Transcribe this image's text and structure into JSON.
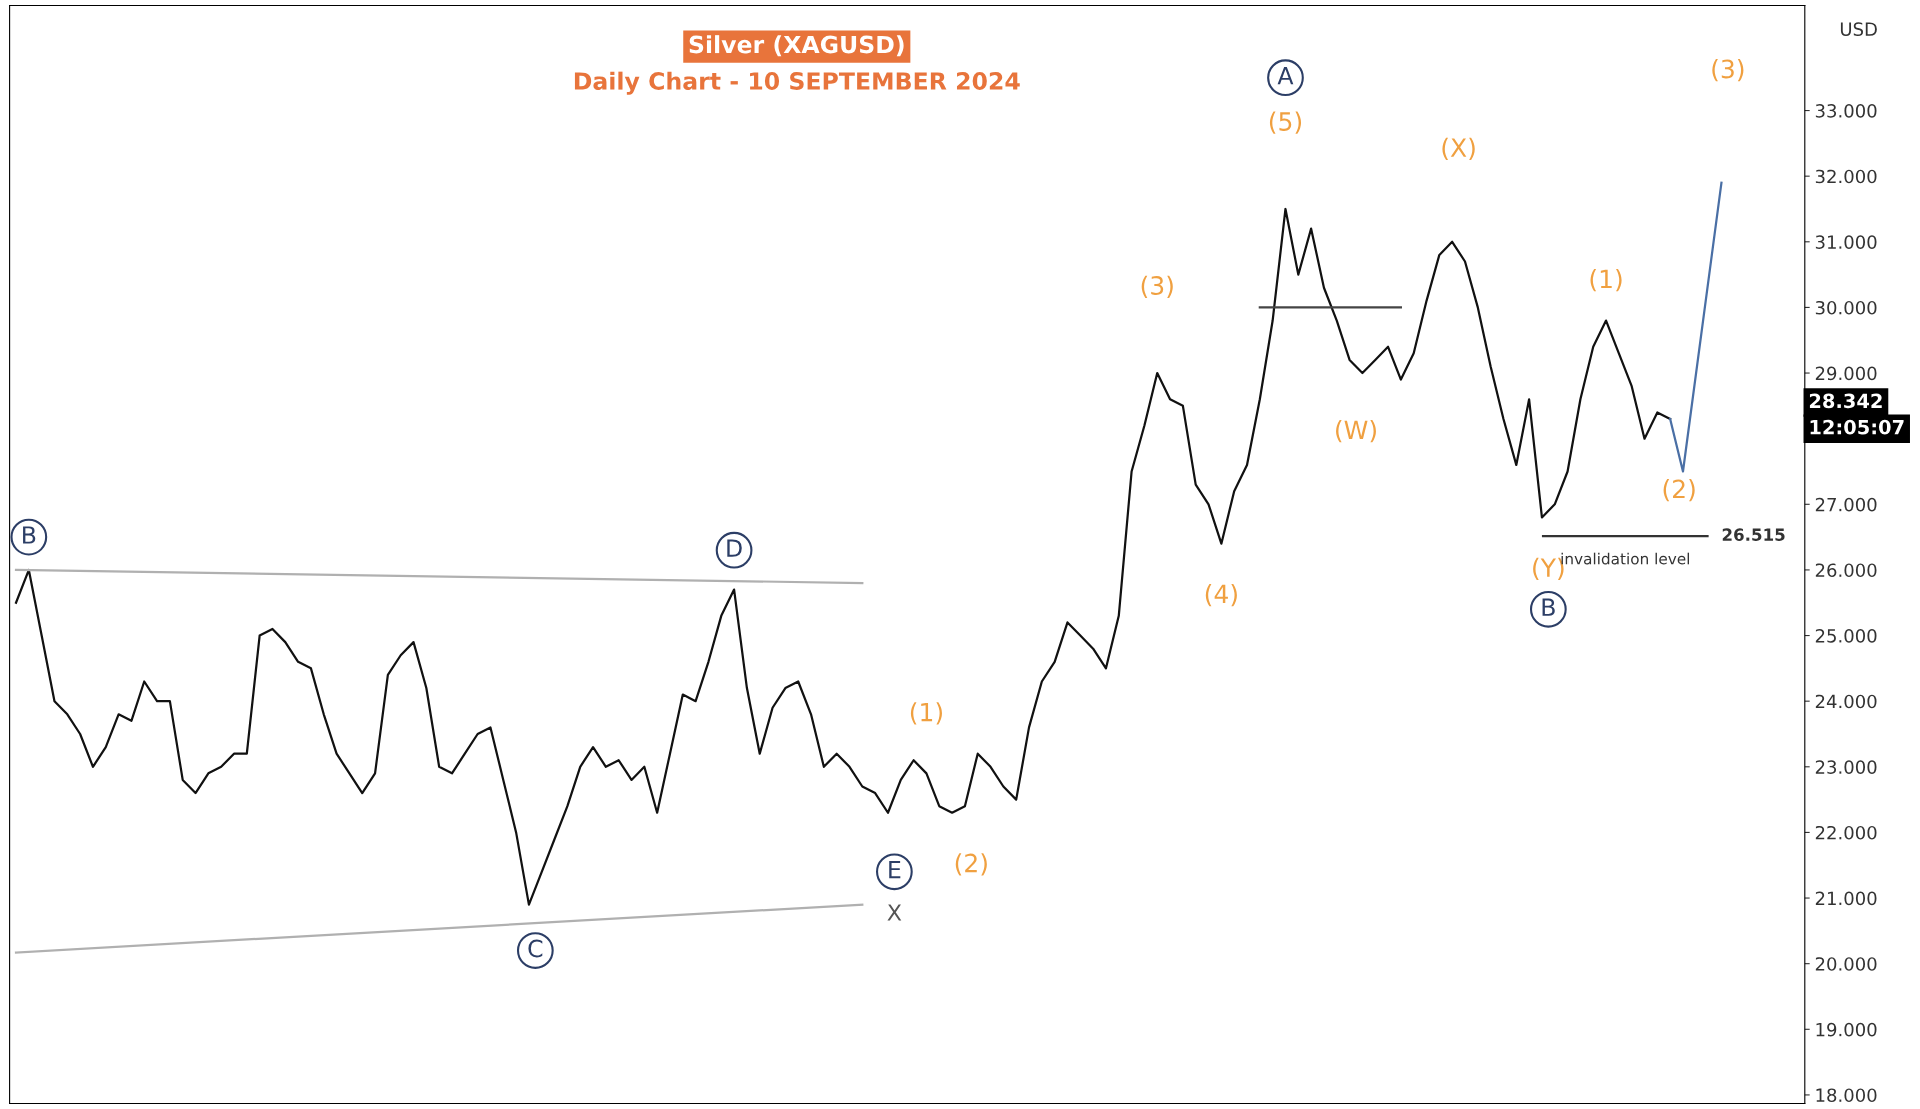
{
  "chart_data": {
    "type": "line",
    "title": "Silver (XAGUSD)",
    "subtitle": "Daily Chart - 10 SEPTEMBER 2024",
    "ylabel": "USD",
    "categories": [
      null,
      null,
      null,
      null,
      null,
      null,
      null,
      null,
      null,
      null,
      null,
      null,
      null,
      null,
      null,
      null,
      null,
      null,
      null,
      null,
      null,
      null,
      null,
      null,
      null,
      null,
      null,
      null,
      null,
      null,
      null,
      null,
      null,
      null,
      null,
      null,
      null,
      null,
      null,
      null,
      null,
      null,
      null,
      null,
      null,
      null,
      null,
      null,
      null,
      null,
      null,
      null,
      null,
      null,
      null,
      null,
      null,
      null,
      null,
      null,
      null,
      null,
      null,
      null,
      null,
      null,
      null,
      null,
      null,
      null,
      null,
      null,
      null,
      null,
      null,
      null,
      null,
      null,
      null,
      null,
      null,
      null,
      null,
      null,
      null,
      null,
      null,
      null,
      null,
      null,
      null,
      null,
      null,
      null,
      null,
      null,
      null,
      null,
      null,
      null,
      null,
      null,
      null,
      null,
      null,
      null,
      null,
      null,
      null,
      null,
      null,
      null,
      null,
      null,
      null,
      null,
      null,
      null,
      null,
      null,
      null,
      null,
      null,
      null,
      null,
      null,
      null,
      null,
      null,
      null,
      null,
      null,
      null,
      null,
      null,
      null,
      null,
      null,
      null,
      null
    ],
    "series": [
      {
        "color": "#111111",
        "values": [
          25.5,
          26.0,
          25.0,
          24.0,
          23.8,
          23.5,
          23.0,
          23.3,
          23.8,
          23.7,
          24.3,
          24.0,
          24.0,
          22.8,
          22.6,
          22.9,
          23.0,
          23.2,
          23.2,
          25.0,
          25.1,
          24.9,
          24.6,
          24.5,
          23.8,
          23.2,
          22.9,
          22.6,
          22.9,
          24.4,
          24.7,
          24.9,
          24.2,
          23.0,
          22.9,
          23.2,
          23.5,
          23.6,
          22.8,
          22.0,
          20.9,
          21.4,
          21.9,
          22.4,
          23.0,
          23.3,
          23.0,
          23.1,
          22.8,
          23.0,
          22.3,
          23.2,
          24.1,
          24.0,
          24.6,
          25.3,
          25.7,
          24.2,
          23.2,
          23.9,
          24.2,
          24.3,
          23.8,
          23.0,
          23.2,
          23.0,
          22.7,
          22.6,
          22.3,
          22.8,
          23.1,
          22.9,
          22.4,
          22.3,
          22.4,
          23.2,
          23.0,
          22.7,
          22.5,
          23.6,
          24.3,
          24.6,
          25.2,
          25.0,
          24.8,
          24.5,
          25.3,
          27.5,
          28.2,
          29.0,
          28.6,
          28.5,
          27.3,
          27.0,
          26.4,
          27.2,
          27.6,
          28.6,
          29.8,
          31.5,
          30.5,
          31.2,
          30.3,
          29.8,
          29.2,
          29.0,
          29.2,
          29.4,
          28.9,
          29.3,
          30.1,
          30.8,
          31.0,
          30.7,
          30.0,
          29.1,
          28.3,
          27.6,
          28.6,
          26.8,
          27.0,
          27.5,
          28.6,
          29.4,
          29.8,
          29.3,
          28.8,
          28.0,
          28.4,
          28.3,
          null,
          null,
          null,
          null,
          null,
          null,
          null,
          null,
          null,
          null
        ]
      },
      {
        "color": "#b0b0b0",
        "values": [
          26.0,
          null,
          null,
          null,
          null,
          null,
          null,
          null,
          null,
          null,
          null,
          null,
          null,
          null,
          null,
          null,
          null,
          null,
          null,
          null,
          null,
          null,
          null,
          null,
          null,
          null,
          null,
          null,
          null,
          null,
          null,
          null,
          null,
          null,
          null,
          null,
          null,
          null,
          null,
          null,
          null,
          null,
          null,
          null,
          null,
          null,
          null,
          null,
          null,
          null,
          null,
          null,
          null,
          null,
          null,
          null,
          null,
          null,
          null,
          null,
          null,
          null,
          null,
          null,
          null,
          null,
          25.8,
          null,
          null,
          null,
          null,
          null,
          null,
          null,
          null,
          null,
          null,
          null,
          null,
          null,
          null,
          null,
          null,
          null,
          null,
          null,
          null,
          null,
          null,
          null,
          null,
          null,
          null,
          null,
          null,
          null,
          null,
          null,
          null,
          null,
          null,
          null,
          null,
          null,
          null,
          null,
          null,
          null,
          null,
          null,
          null,
          null,
          null,
          null,
          null,
          null,
          null,
          null,
          null,
          null,
          null,
          null,
          null,
          null,
          null,
          null,
          null,
          null,
          null,
          null,
          null,
          null,
          null,
          null,
          null,
          null,
          null,
          null,
          null,
          null
        ]
      },
      {
        "color": "#b0b0b0",
        "values": [
          20.17,
          null,
          null,
          null,
          null,
          null,
          null,
          null,
          null,
          null,
          null,
          null,
          null,
          null,
          null,
          null,
          null,
          null,
          null,
          null,
          null,
          null,
          null,
          null,
          null,
          null,
          null,
          null,
          null,
          null,
          null,
          null,
          null,
          null,
          null,
          null,
          null,
          null,
          null,
          null,
          null,
          null,
          null,
          null,
          null,
          null,
          null,
          null,
          null,
          null,
          null,
          null,
          null,
          null,
          null,
          null,
          null,
          null,
          null,
          null,
          null,
          null,
          null,
          null,
          null,
          null,
          20.9,
          null,
          null,
          null,
          null,
          null,
          null,
          null,
          null,
          null,
          null,
          null,
          null,
          null,
          null,
          null,
          null,
          null,
          null,
          null,
          null,
          null,
          null,
          null,
          null,
          null,
          null,
          null,
          null,
          null,
          null,
          null,
          null,
          null,
          null,
          null,
          null,
          null,
          null,
          null,
          null,
          null,
          null,
          null,
          null,
          null,
          null,
          null,
          null,
          null,
          null,
          null,
          null,
          null,
          null,
          null,
          null,
          null,
          null,
          null,
          null,
          null,
          null,
          null,
          null,
          null,
          null,
          null,
          null,
          null,
          null,
          null,
          null,
          null
        ]
      },
      {
        "color": "#444444",
        "values": [
          null,
          null,
          null,
          null,
          null,
          null,
          null,
          null,
          null,
          null,
          null,
          null,
          null,
          null,
          null,
          null,
          null,
          null,
          null,
          null,
          null,
          null,
          null,
          null,
          null,
          null,
          null,
          null,
          null,
          null,
          null,
          null,
          null,
          null,
          null,
          null,
          null,
          null,
          null,
          null,
          null,
          null,
          null,
          null,
          null,
          null,
          null,
          null,
          null,
          null,
          null,
          null,
          null,
          null,
          null,
          null,
          null,
          null,
          null,
          null,
          null,
          null,
          null,
          null,
          null,
          null,
          null,
          null,
          null,
          null,
          null,
          null,
          null,
          null,
          null,
          null,
          null,
          null,
          null,
          null,
          null,
          null,
          null,
          null,
          null,
          null,
          null,
          null,
          null,
          null,
          null,
          null,
          null,
          null,
          null,
          null,
          null,
          30.0,
          null,
          null,
          null,
          null,
          null,
          null,
          null,
          null,
          null,
          null,
          30.0,
          null,
          null,
          null,
          null,
          null,
          null,
          null,
          null,
          null,
          null,
          null,
          null,
          null,
          null,
          null,
          null,
          null,
          null,
          null,
          null,
          null,
          null,
          null,
          null,
          null,
          null,
          null,
          null,
          null,
          null,
          null
        ]
      },
      {
        "color": "#4a6fa5",
        "values": [
          null,
          null,
          null,
          null,
          null,
          null,
          null,
          null,
          null,
          null,
          null,
          null,
          null,
          null,
          null,
          null,
          null,
          null,
          null,
          null,
          null,
          null,
          null,
          null,
          null,
          null,
          null,
          null,
          null,
          null,
          null,
          null,
          null,
          null,
          null,
          null,
          null,
          null,
          null,
          null,
          null,
          null,
          null,
          null,
          null,
          null,
          null,
          null,
          null,
          null,
          null,
          null,
          null,
          null,
          null,
          null,
          null,
          null,
          null,
          null,
          null,
          null,
          null,
          null,
          null,
          null,
          null,
          null,
          null,
          null,
          null,
          null,
          null,
          null,
          null,
          null,
          null,
          null,
          null,
          null,
          null,
          null,
          null,
          null,
          null,
          null,
          null,
          null,
          null,
          null,
          null,
          null,
          null,
          null,
          null,
          null,
          null,
          null,
          null,
          null,
          null,
          null,
          null,
          null,
          null,
          null,
          null,
          null,
          null,
          null,
          null,
          null,
          null,
          null,
          null,
          null,
          null,
          null,
          null,
          null,
          null,
          null,
          null,
          null,
          null,
          null,
          null,
          null,
          null,
          28.3,
          27.5,
          null,
          null,
          31.9,
          null,
          null,
          null,
          null,
          null,
          null
        ]
      }
    ],
    "ylim": [
      17.87,
      34.6
    ],
    "yticks": [
      {
        "value": 18,
        "label": "18.000"
      },
      {
        "value": 19,
        "label": "19.000"
      },
      {
        "value": 20,
        "label": "20.000"
      },
      {
        "value": 21,
        "label": "21.000"
      },
      {
        "value": 22,
        "label": "22.000"
      },
      {
        "value": 23,
        "label": "23.000"
      },
      {
        "value": 24,
        "label": "24.000"
      },
      {
        "value": 25,
        "label": "25.000"
      },
      {
        "value": 26,
        "label": "26.000"
      },
      {
        "value": 27,
        "label": "27.000"
      },
      {
        "value": 28,
        "label": null
      },
      {
        "value": 29,
        "label": "29.000"
      },
      {
        "value": 30,
        "label": "30.000"
      },
      {
        "value": 31,
        "label": "31.000"
      },
      {
        "value": 32,
        "label": "32.000"
      },
      {
        "value": 33,
        "label": "33.000"
      }
    ],
    "tick_labels": "y",
    "grid": false,
    "ref_lines": [
      {
        "axis": "y",
        "value": 26.515,
        "label": "26.515",
        "color": "#333333"
      }
    ],
    "annotations": [
      "B",
      "D",
      "C",
      "E",
      "A",
      "B",
      "(1)",
      "(2)",
      "X",
      "(3)",
      "(4)",
      "(5)",
      "(W)",
      "(X)",
      "(Y)",
      "(1)",
      "(2)",
      "(3)",
      "invalidation level",
      "28.342",
      "12:05:07"
    ]
  }
}
